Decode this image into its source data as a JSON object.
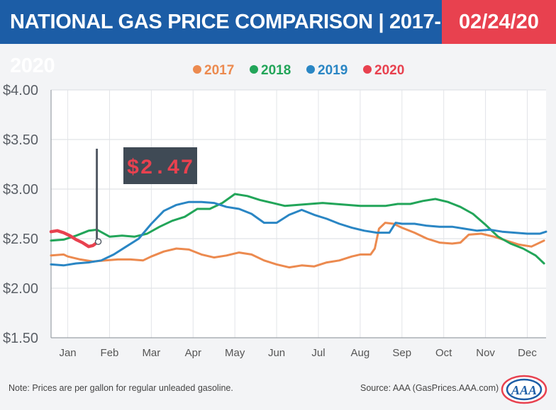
{
  "header": {
    "title": "NATIONAL GAS PRICE COMPARISON | 2017-2020",
    "date": "02/24/20"
  },
  "colors": {
    "header_bg": "#1c5da6",
    "date_bg": "#e8414f",
    "2017": "#ec8a4f",
    "2018": "#22a559",
    "2019": "#2a86c4",
    "2020": "#e8414f"
  },
  "callout": {
    "label": "$2.47",
    "x": 1.73,
    "y": 2.47
  },
  "footer": {
    "note": "Note: Prices are per gallon for regular unleaded gasoline.",
    "source": "Source: AAA (GasPrices.AAA.com)",
    "logo_text": "AAA"
  },
  "chart_data": {
    "type": "line",
    "title": "NATIONAL GAS PRICE COMPARISON | 2017-2020",
    "xlabel": "",
    "ylabel": "",
    "categories": [
      "Jan",
      "Feb",
      "Mar",
      "Apr",
      "May",
      "Jun",
      "Jul",
      "Aug",
      "Sep",
      "Oct",
      "Nov",
      "Dec"
    ],
    "y_ticks": [
      "$4.00",
      "$3.50",
      "$3.00",
      "$2.50",
      "$2.00",
      "$1.50"
    ],
    "y_tick_values": [
      4.0,
      3.5,
      3.0,
      2.5,
      2.0,
      1.5
    ],
    "xlim": [
      0.6,
      12.45
    ],
    "ylim": [
      1.5,
      4.0
    ],
    "grid": true,
    "legend_position": "top-center",
    "series": [
      {
        "name": "2017",
        "color": "#ec8a4f",
        "x": [
          0.6,
          0.9,
          1.0,
          1.3,
          1.6,
          1.9,
          2.2,
          2.5,
          2.8,
          3.0,
          3.3,
          3.6,
          3.9,
          4.2,
          4.5,
          4.8,
          5.1,
          5.4,
          5.7,
          6.0,
          6.3,
          6.6,
          6.9,
          7.2,
          7.5,
          7.8,
          8.0,
          8.25,
          8.35,
          8.45,
          8.6,
          8.8,
          9.0,
          9.3,
          9.6,
          9.9,
          10.2,
          10.4,
          10.6,
          10.9,
          11.2,
          11.5,
          11.8,
          12.1,
          12.4
        ],
        "y": [
          2.33,
          2.34,
          2.32,
          2.29,
          2.27,
          2.28,
          2.29,
          2.29,
          2.28,
          2.32,
          2.37,
          2.4,
          2.39,
          2.34,
          2.31,
          2.33,
          2.36,
          2.34,
          2.28,
          2.24,
          2.21,
          2.23,
          2.22,
          2.26,
          2.28,
          2.32,
          2.34,
          2.34,
          2.4,
          2.6,
          2.66,
          2.65,
          2.61,
          2.56,
          2.5,
          2.46,
          2.45,
          2.46,
          2.54,
          2.55,
          2.52,
          2.48,
          2.44,
          2.42,
          2.48
        ]
      },
      {
        "name": "2018",
        "color": "#22a559",
        "x": [
          0.6,
          0.9,
          1.2,
          1.5,
          1.7,
          2.0,
          2.3,
          2.6,
          2.9,
          3.2,
          3.5,
          3.8,
          4.1,
          4.4,
          4.7,
          5.0,
          5.3,
          5.6,
          5.9,
          6.2,
          6.5,
          6.8,
          7.1,
          7.4,
          7.7,
          8.0,
          8.3,
          8.6,
          8.9,
          9.2,
          9.5,
          9.8,
          10.1,
          10.4,
          10.7,
          11.0,
          11.3,
          11.6,
          11.9,
          12.2,
          12.4
        ],
        "y": [
          2.48,
          2.49,
          2.53,
          2.58,
          2.59,
          2.52,
          2.53,
          2.52,
          2.55,
          2.62,
          2.68,
          2.72,
          2.8,
          2.8,
          2.86,
          2.95,
          2.93,
          2.89,
          2.86,
          2.83,
          2.84,
          2.85,
          2.86,
          2.85,
          2.84,
          2.83,
          2.83,
          2.83,
          2.85,
          2.85,
          2.88,
          2.9,
          2.87,
          2.82,
          2.75,
          2.64,
          2.52,
          2.45,
          2.4,
          2.33,
          2.25
        ]
      },
      {
        "name": "2019",
        "color": "#2a86c4",
        "x": [
          0.6,
          0.9,
          1.2,
          1.5,
          1.8,
          2.1,
          2.4,
          2.7,
          3.0,
          3.3,
          3.6,
          3.9,
          4.2,
          4.5,
          4.8,
          5.1,
          5.4,
          5.7,
          6.0,
          6.3,
          6.6,
          6.9,
          7.2,
          7.5,
          7.8,
          8.1,
          8.4,
          8.7,
          8.85,
          9.0,
          9.3,
          9.6,
          9.9,
          10.2,
          10.5,
          10.8,
          11.1,
          11.4,
          11.7,
          12.0,
          12.3,
          12.45
        ],
        "y": [
          2.24,
          2.23,
          2.25,
          2.26,
          2.28,
          2.34,
          2.42,
          2.5,
          2.65,
          2.78,
          2.84,
          2.87,
          2.87,
          2.86,
          2.82,
          2.8,
          2.75,
          2.66,
          2.66,
          2.74,
          2.79,
          2.74,
          2.7,
          2.65,
          2.61,
          2.58,
          2.56,
          2.56,
          2.66,
          2.65,
          2.65,
          2.63,
          2.62,
          2.62,
          2.6,
          2.58,
          2.59,
          2.57,
          2.56,
          2.55,
          2.55,
          2.57
        ]
      },
      {
        "name": "2020",
        "color": "#e8414f",
        "x": [
          0.6,
          0.75,
          0.9,
          1.05,
          1.2,
          1.35,
          1.5,
          1.6,
          1.73
        ],
        "y": [
          2.57,
          2.58,
          2.56,
          2.53,
          2.49,
          2.46,
          2.42,
          2.43,
          2.47
        ]
      }
    ]
  }
}
